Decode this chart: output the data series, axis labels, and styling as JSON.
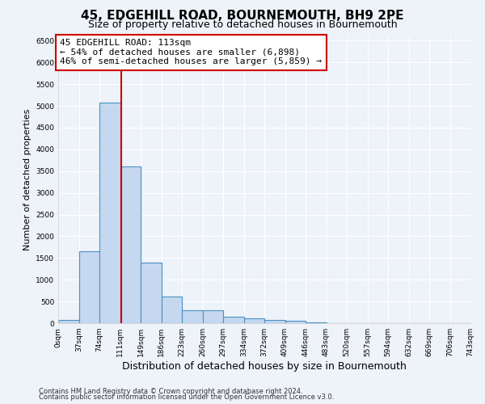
{
  "title": "45, EDGEHILL ROAD, BOURNEMOUTH, BH9 2PE",
  "subtitle": "Size of property relative to detached houses in Bournemouth",
  "xlabel": "Distribution of detached houses by size in Bournemouth",
  "ylabel": "Number of detached properties",
  "footnote1": "Contains HM Land Registry data © Crown copyright and database right 2024.",
  "footnote2": "Contains public sector information licensed under the Open Government Licence v3.0.",
  "bin_labels": [
    "0sqm",
    "37sqm",
    "74sqm",
    "111sqm",
    "149sqm",
    "186sqm",
    "223sqm",
    "260sqm",
    "297sqm",
    "334sqm",
    "372sqm",
    "409sqm",
    "446sqm",
    "483sqm",
    "520sqm",
    "557sqm",
    "594sqm",
    "632sqm",
    "669sqm",
    "706sqm",
    "743sqm"
  ],
  "bar_values": [
    70,
    1650,
    5075,
    3600,
    1400,
    620,
    300,
    290,
    150,
    110,
    80,
    55,
    20,
    5,
    0,
    0,
    0,
    0,
    0,
    0
  ],
  "bar_color": "#c5d8f0",
  "bar_edge_color": "#4a90c4",
  "property_line_x": 113,
  "annotation_title": "45 EDGEHILL ROAD: 113sqm",
  "annotation_line1": "← 54% of detached houses are smaller (6,898)",
  "annotation_line2": "46% of semi-detached houses are larger (5,859) →",
  "annotation_box_color": "#cc0000",
  "ylim": [
    0,
    6600
  ],
  "bin_width": 37,
  "num_bins": 20,
  "background_color": "#eef2f9",
  "grid_color": "#ffffff",
  "title_fontsize": 11,
  "subtitle_fontsize": 9,
  "ylabel_fontsize": 8,
  "xlabel_fontsize": 9,
  "tick_fontsize": 6.5,
  "footnote_fontsize": 6
}
